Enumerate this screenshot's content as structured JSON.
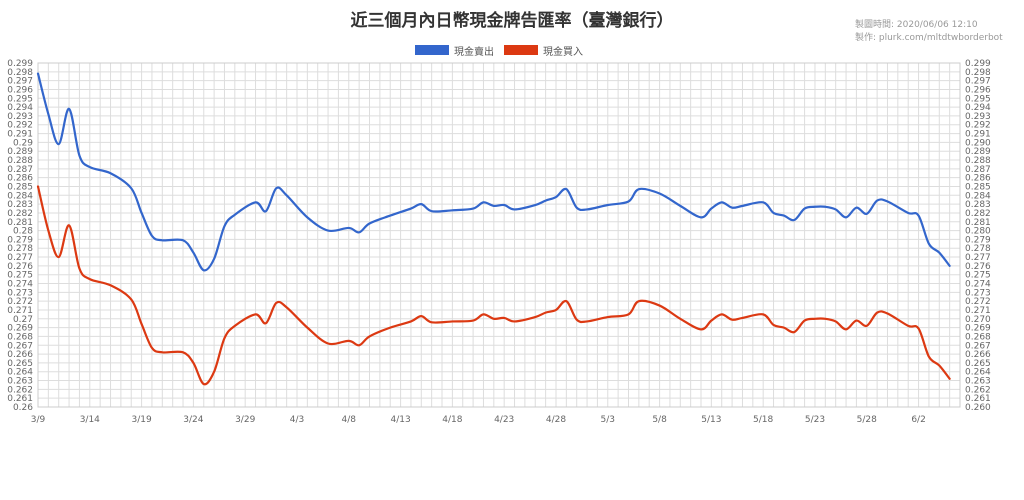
{
  "header": {
    "title": "近三個月內日幣現金牌告匯率（臺灣銀行）",
    "time_label": "製圖時間: 2020/06/06 12:10",
    "author_label": "製作: plurk.com/mltdtwborderbot"
  },
  "colors": {
    "sell": "#3366cc",
    "buy": "#dc3912",
    "grid": "#dddddd",
    "axis_text": "#666666"
  },
  "chart_data": {
    "type": "line",
    "title": "近三個月內日幣現金牌告匯率（臺灣銀行）",
    "legend_position": "top",
    "grid": true,
    "x_range": [
      0,
      89
    ],
    "x_ticks": [
      {
        "label": "3/9",
        "x": 0
      },
      {
        "label": "3/14",
        "x": 5
      },
      {
        "label": "3/19",
        "x": 10
      },
      {
        "label": "3/24",
        "x": 15
      },
      {
        "label": "3/29",
        "x": 20
      },
      {
        "label": "4/3",
        "x": 25
      },
      {
        "label": "4/8",
        "x": 30
      },
      {
        "label": "4/13",
        "x": 35
      },
      {
        "label": "4/18",
        "x": 40
      },
      {
        "label": "4/23",
        "x": 45
      },
      {
        "label": "4/28",
        "x": 50
      },
      {
        "label": "5/3",
        "x": 55
      },
      {
        "label": "5/8",
        "x": 60
      },
      {
        "label": "5/13",
        "x": 65
      },
      {
        "label": "5/18",
        "x": 70
      },
      {
        "label": "5/23",
        "x": 75
      },
      {
        "label": "5/28",
        "x": 80
      },
      {
        "label": "6/2",
        "x": 85
      }
    ],
    "ylim": [
      0.26,
      0.299
    ],
    "y_ticks_left": [
      "0.26",
      "0.261",
      "0.262",
      "0.263",
      "0.264",
      "0.265",
      "0.266",
      "0.267",
      "0.268",
      "0.269",
      "0.27",
      "0.271",
      "0.272",
      "0.273",
      "0.274",
      "0.275",
      "0.276",
      "0.277",
      "0.278",
      "0.279",
      "0.28",
      "0.281",
      "0.282",
      "0.283",
      "0.284",
      "0.285",
      "0.286",
      "0.287",
      "0.288",
      "0.289",
      "0.29",
      "0.291",
      "0.292",
      "0.293",
      "0.294",
      "0.295",
      "0.296",
      "0.297",
      "0.298",
      "0.299"
    ],
    "y_ticks_right": [
      "0.260",
      "0.261",
      "0.262",
      "0.263",
      "0.264",
      "0.265",
      "0.266",
      "0.267",
      "0.268",
      "0.269",
      "0.270",
      "0.271",
      "0.272",
      "0.273",
      "0.274",
      "0.275",
      "0.276",
      "0.277",
      "0.278",
      "0.279",
      "0.280",
      "0.281",
      "0.282",
      "0.283",
      "0.284",
      "0.285",
      "0.286",
      "0.287",
      "0.288",
      "0.289",
      "0.290",
      "0.291",
      "0.292",
      "0.293",
      "0.294",
      "0.295",
      "0.296",
      "0.297",
      "0.298",
      "0.299"
    ],
    "series": [
      {
        "name": "現金賣出",
        "color": "#3366cc",
        "points": [
          [
            0,
            0.2978
          ],
          [
            1,
            0.2932
          ],
          [
            2,
            0.2898
          ],
          [
            3,
            0.2938
          ],
          [
            4,
            0.2885
          ],
          [
            5,
            0.2872
          ],
          [
            7,
            0.2865
          ],
          [
            9,
            0.2848
          ],
          [
            10,
            0.282
          ],
          [
            11,
            0.2794
          ],
          [
            12,
            0.2789
          ],
          [
            14,
            0.2789
          ],
          [
            15,
            0.2775
          ],
          [
            16,
            0.2755
          ],
          [
            17,
            0.2768
          ],
          [
            18,
            0.2805
          ],
          [
            19,
            0.2818
          ],
          [
            21,
            0.2832
          ],
          [
            22,
            0.2822
          ],
          [
            23,
            0.2848
          ],
          [
            24,
            0.284
          ],
          [
            26,
            0.2815
          ],
          [
            28,
            0.28
          ],
          [
            30,
            0.2803
          ],
          [
            31,
            0.2798
          ],
          [
            32,
            0.2808
          ],
          [
            34,
            0.2817
          ],
          [
            36,
            0.2825
          ],
          [
            37,
            0.283
          ],
          [
            38,
            0.2822
          ],
          [
            40,
            0.2823
          ],
          [
            42,
            0.2825
          ],
          [
            43,
            0.2832
          ],
          [
            44,
            0.2828
          ],
          [
            45,
            0.2829
          ],
          [
            46,
            0.2824
          ],
          [
            48,
            0.2829
          ],
          [
            49,
            0.2834
          ],
          [
            50,
            0.2838
          ],
          [
            51,
            0.2847
          ],
          [
            52,
            0.2826
          ],
          [
            53,
            0.2824
          ],
          [
            55,
            0.2829
          ],
          [
            57,
            0.2833
          ],
          [
            58,
            0.2847
          ],
          [
            60,
            0.2842
          ],
          [
            62,
            0.2828
          ],
          [
            64,
            0.2815
          ],
          [
            65,
            0.2825
          ],
          [
            66,
            0.2832
          ],
          [
            67,
            0.2826
          ],
          [
            68,
            0.2828
          ],
          [
            70,
            0.2832
          ],
          [
            71,
            0.282
          ],
          [
            72,
            0.2817
          ],
          [
            73,
            0.2812
          ],
          [
            74,
            0.2825
          ],
          [
            75,
            0.2827
          ],
          [
            76,
            0.2827
          ],
          [
            77,
            0.2824
          ],
          [
            78,
            0.2815
          ],
          [
            79,
            0.2826
          ],
          [
            80,
            0.2819
          ],
          [
            81,
            0.2834
          ],
          [
            82,
            0.2833
          ],
          [
            84,
            0.282
          ],
          [
            85,
            0.2817
          ],
          [
            86,
            0.2785
          ],
          [
            87,
            0.2775
          ],
          [
            88,
            0.276
          ]
        ]
      },
      {
        "name": "現金買入",
        "color": "#dc3912",
        "points": [
          [
            0,
            0.285
          ],
          [
            1,
            0.28
          ],
          [
            2,
            0.277
          ],
          [
            3,
            0.2806
          ],
          [
            4,
            0.2757
          ],
          [
            5,
            0.2745
          ],
          [
            7,
            0.2738
          ],
          [
            9,
            0.2722
          ],
          [
            10,
            0.2694
          ],
          [
            11,
            0.2667
          ],
          [
            12,
            0.2662
          ],
          [
            14,
            0.2662
          ],
          [
            15,
            0.265
          ],
          [
            16,
            0.2626
          ],
          [
            17,
            0.264
          ],
          [
            18,
            0.2678
          ],
          [
            19,
            0.2692
          ],
          [
            21,
            0.2705
          ],
          [
            22,
            0.2695
          ],
          [
            23,
            0.2718
          ],
          [
            24,
            0.2713
          ],
          [
            26,
            0.269
          ],
          [
            28,
            0.2672
          ],
          [
            30,
            0.2675
          ],
          [
            31,
            0.267
          ],
          [
            32,
            0.268
          ],
          [
            34,
            0.269
          ],
          [
            36,
            0.2697
          ],
          [
            37,
            0.2703
          ],
          [
            38,
            0.2696
          ],
          [
            40,
            0.2697
          ],
          [
            42,
            0.2698
          ],
          [
            43,
            0.2705
          ],
          [
            44,
            0.27
          ],
          [
            45,
            0.2701
          ],
          [
            46,
            0.2697
          ],
          [
            48,
            0.2702
          ],
          [
            49,
            0.2707
          ],
          [
            50,
            0.271
          ],
          [
            51,
            0.272
          ],
          [
            52,
            0.2699
          ],
          [
            53,
            0.2697
          ],
          [
            55,
            0.2702
          ],
          [
            57,
            0.2705
          ],
          [
            58,
            0.272
          ],
          [
            60,
            0.2715
          ],
          [
            62,
            0.27
          ],
          [
            64,
            0.2688
          ],
          [
            65,
            0.2698
          ],
          [
            66,
            0.2705
          ],
          [
            67,
            0.2699
          ],
          [
            68,
            0.2701
          ],
          [
            70,
            0.2705
          ],
          [
            71,
            0.2693
          ],
          [
            72,
            0.269
          ],
          [
            73,
            0.2685
          ],
          [
            74,
            0.2698
          ],
          [
            75,
            0.27
          ],
          [
            76,
            0.27
          ],
          [
            77,
            0.2697
          ],
          [
            78,
            0.2688
          ],
          [
            79,
            0.2698
          ],
          [
            80,
            0.2692
          ],
          [
            81,
            0.2707
          ],
          [
            82,
            0.2706
          ],
          [
            84,
            0.2692
          ],
          [
            85,
            0.2689
          ],
          [
            86,
            0.2657
          ],
          [
            87,
            0.2647
          ],
          [
            88,
            0.2632
          ]
        ]
      }
    ]
  }
}
